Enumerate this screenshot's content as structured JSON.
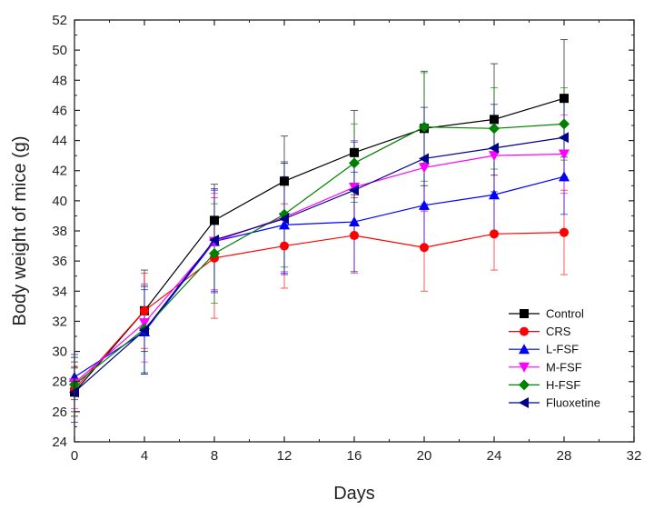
{
  "chart_data": {
    "type": "line",
    "title": "",
    "xlabel": "Days",
    "ylabel": "Body weight of mice (g)",
    "xlim": [
      0,
      32
    ],
    "ylim": [
      24,
      52
    ],
    "xticks": [
      0,
      4,
      8,
      12,
      16,
      20,
      24,
      28,
      32
    ],
    "yticks": [
      24,
      26,
      28,
      30,
      32,
      34,
      36,
      38,
      40,
      42,
      44,
      46,
      48,
      50,
      52
    ],
    "x": [
      0,
      4,
      8,
      12,
      16,
      20,
      24,
      28
    ],
    "legend_position": "lower-right",
    "series": [
      {
        "name": "Control",
        "color": "#000000",
        "marker": "square",
        "values": [
          27.3,
          32.7,
          38.7,
          41.3,
          43.2,
          44.8,
          45.4,
          46.8
        ],
        "errors": [
          1.6,
          2.7,
          2.4,
          3.0,
          2.8,
          3.8,
          3.7,
          3.9
        ]
      },
      {
        "name": "CRS",
        "color": "#ff0000",
        "marker": "circle",
        "values": [
          27.5,
          32.7,
          36.2,
          37.0,
          37.7,
          36.9,
          37.8,
          37.9
        ],
        "errors": [
          1.5,
          2.5,
          4.0,
          2.8,
          2.5,
          2.9,
          2.4,
          2.8
        ]
      },
      {
        "name": "L-FSF",
        "color": "#0000ff",
        "marker": "triangle-up",
        "values": [
          28.3,
          31.3,
          37.3,
          38.4,
          38.6,
          39.7,
          40.4,
          41.6
        ],
        "errors": [
          1.5,
          2.8,
          3.4,
          3.2,
          3.3,
          2.8,
          2.6,
          2.5
        ]
      },
      {
        "name": "M-FSF",
        "color": "#ff00ff",
        "marker": "triangle-down",
        "values": [
          27.9,
          31.9,
          37.3,
          38.9,
          40.9,
          42.2,
          43.0,
          43.1
        ],
        "errors": [
          1.7,
          2.6,
          3.2,
          3.6,
          3.1,
          2.9,
          2.6,
          2.6
        ]
      },
      {
        "name": "H-FSF",
        "color": "#008000",
        "marker": "diamond",
        "values": [
          27.8,
          31.5,
          36.5,
          39.1,
          42.5,
          44.9,
          44.8,
          45.1
        ],
        "errors": [
          1.8,
          2.9,
          3.3,
          3.5,
          2.6,
          3.6,
          2.7,
          2.4
        ]
      },
      {
        "name": "Fluoxetine",
        "color": "#00008b",
        "marker": "triangle-left",
        "values": [
          27.3,
          31.4,
          37.4,
          38.8,
          40.7,
          42.8,
          43.5,
          44.2
        ],
        "errors": [
          2.0,
          2.9,
          3.4,
          3.7,
          3.2,
          3.4,
          2.9,
          2.6
        ]
      }
    ]
  }
}
